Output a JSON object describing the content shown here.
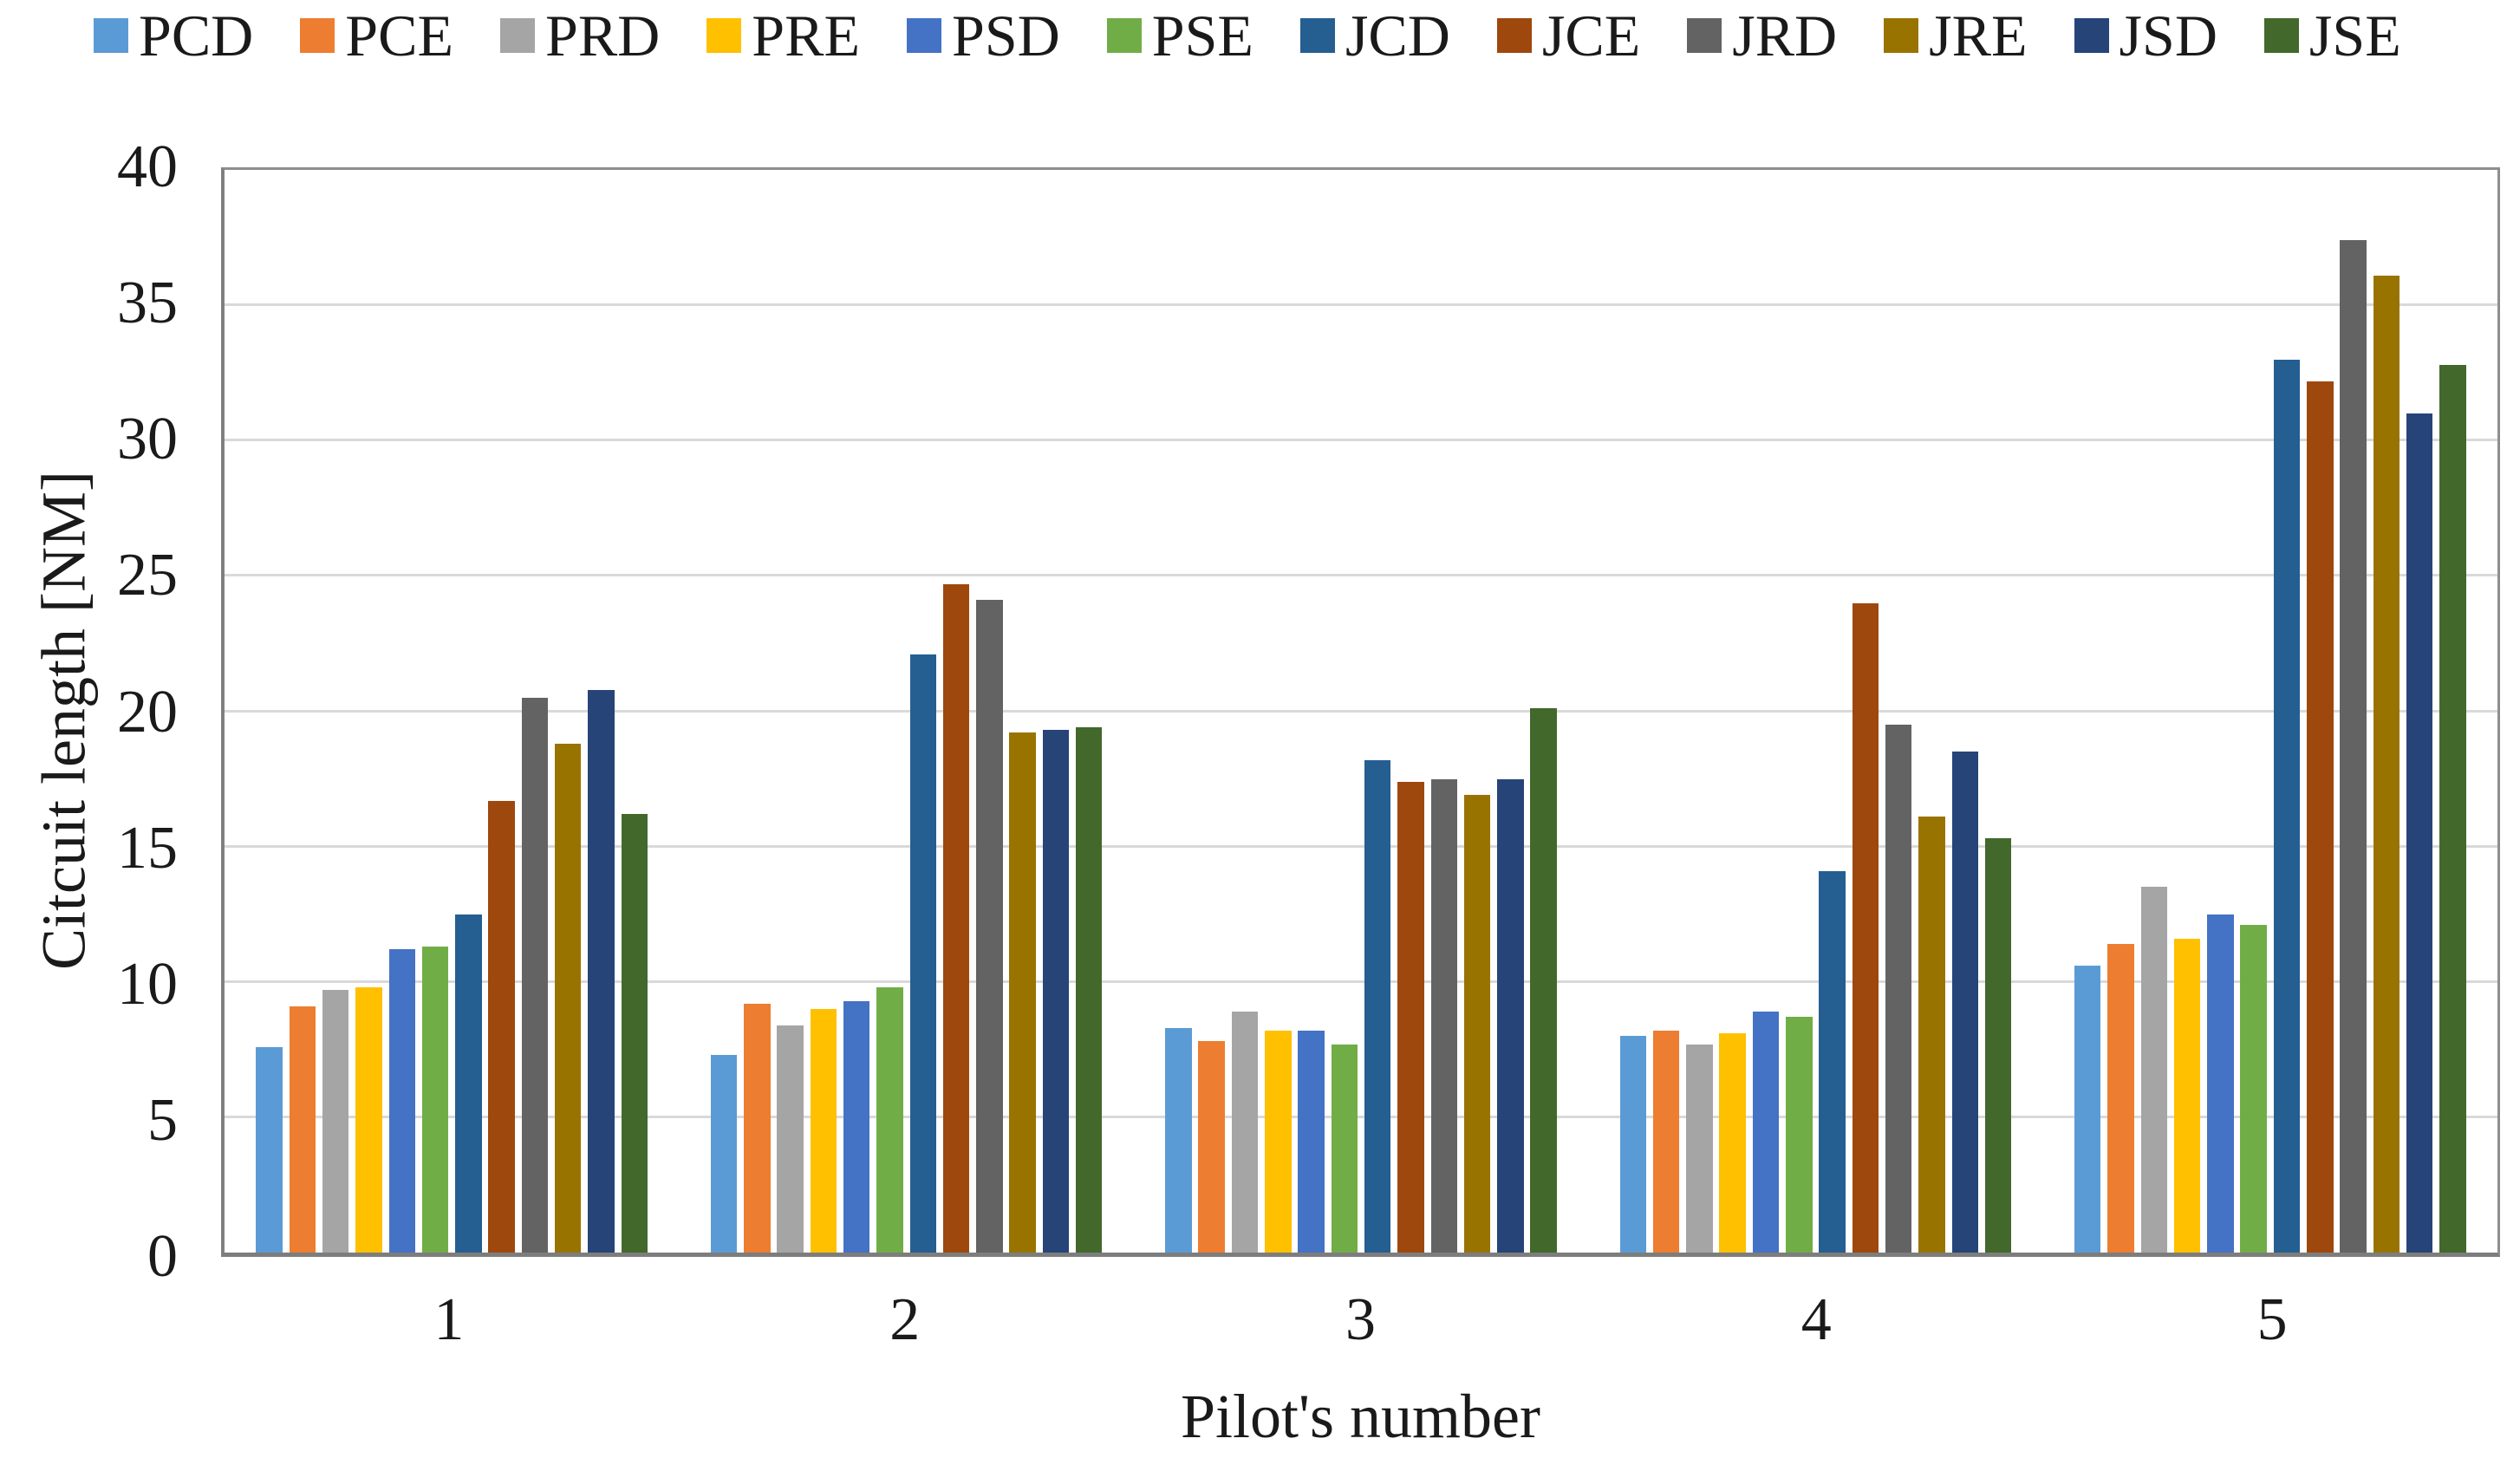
{
  "chart_data": {
    "type": "bar",
    "title": "",
    "xlabel": "Pilot's number",
    "ylabel": "Citcuit length [NM]",
    "categories": [
      "1",
      "2",
      "3",
      "4",
      "5"
    ],
    "ylim": [
      0,
      40
    ],
    "yticks": [
      0,
      5,
      10,
      15,
      20,
      25,
      30,
      35,
      40
    ],
    "grid": true,
    "legend_position": "top",
    "series": [
      {
        "name": "PCD",
        "color": "#5B9BD5",
        "values": [
          7.6,
          7.3,
          8.3,
          8.0,
          10.6
        ]
      },
      {
        "name": "PCE",
        "color": "#ED7D31",
        "values": [
          9.1,
          9.2,
          7.8,
          8.2,
          11.4
        ]
      },
      {
        "name": "PRD",
        "color": "#A5A5A5",
        "values": [
          9.7,
          8.4,
          8.9,
          7.7,
          13.5
        ]
      },
      {
        "name": "PRE",
        "color": "#FFC000",
        "values": [
          9.8,
          9.0,
          8.2,
          8.1,
          11.6
        ]
      },
      {
        "name": "PSD",
        "color": "#4472C4",
        "values": [
          11.2,
          9.3,
          8.2,
          8.9,
          12.5
        ]
      },
      {
        "name": "PSE",
        "color": "#70AD47",
        "values": [
          11.3,
          9.8,
          7.7,
          8.7,
          12.1
        ]
      },
      {
        "name": "JCD",
        "color": "#255E91",
        "values": [
          12.5,
          22.1,
          18.2,
          14.1,
          33.0
        ]
      },
      {
        "name": "JCE",
        "color": "#9E480E",
        "values": [
          16.7,
          24.7,
          17.4,
          24.0,
          32.2
        ]
      },
      {
        "name": "JRD",
        "color": "#636363",
        "values": [
          20.5,
          24.1,
          17.5,
          19.5,
          37.4
        ]
      },
      {
        "name": "JRE",
        "color": "#997300",
        "values": [
          18.8,
          19.2,
          16.9,
          16.1,
          36.1
        ]
      },
      {
        "name": "JSD",
        "color": "#264478",
        "values": [
          20.8,
          19.3,
          17.5,
          18.5,
          31.0
        ]
      },
      {
        "name": "JSE",
        "color": "#43682B",
        "values": [
          16.2,
          19.4,
          20.1,
          15.3,
          32.8
        ]
      }
    ],
    "colors": {
      "gridline": "#d9d9d9",
      "axis": "#808080",
      "text": "#1a1a1a"
    }
  }
}
